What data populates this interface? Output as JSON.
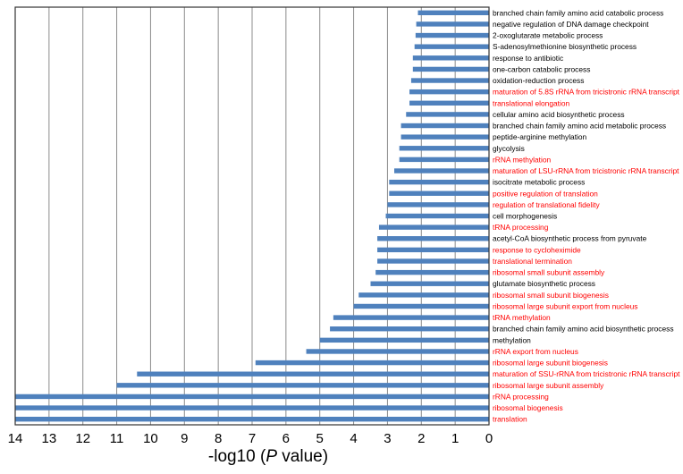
{
  "chart_data": {
    "type": "bar",
    "orientation": "horizontal",
    "x_axis_reversed": true,
    "xlabel_prefix": "-log10 (",
    "xlabel_italic": "P",
    "xlabel_suffix": " value)",
    "xlim": [
      0,
      14
    ],
    "xticks": [
      14,
      13,
      12,
      11,
      10,
      9,
      8,
      7,
      6,
      5,
      4,
      3,
      2,
      1,
      0
    ],
    "colors": {
      "bar": "#4f81bd",
      "highlight_label": "#ff0000",
      "normal_label": "#000000"
    },
    "categories": [
      {
        "label": "branched chain family amino acid catabolic process",
        "value": 2.1,
        "highlight": false
      },
      {
        "label": "negative regulation of DNA damage checkpoint",
        "value": 2.15,
        "highlight": false
      },
      {
        "label": "2-oxoglutarate metabolic process",
        "value": 2.17,
        "highlight": false
      },
      {
        "label": "S-adenosylmethionine biosynthetic process",
        "value": 2.2,
        "highlight": false
      },
      {
        "label": "response to antibiotic",
        "value": 2.25,
        "highlight": false
      },
      {
        "label": "one-carbon catabolic process",
        "value": 2.25,
        "highlight": false
      },
      {
        "label": "oxidation-reduction process",
        "value": 2.3,
        "highlight": false
      },
      {
        "label": "maturation of 5.8S rRNA from tricistronic rRNA transcript",
        "value": 2.35,
        "highlight": true
      },
      {
        "label": "translational elongation",
        "value": 2.35,
        "highlight": true
      },
      {
        "label": "cellular amino acid biosynthetic process",
        "value": 2.45,
        "highlight": false
      },
      {
        "label": "branched chain family amino acid metabolic process",
        "value": 2.6,
        "highlight": false
      },
      {
        "label": "peptide-arginine methylation",
        "value": 2.6,
        "highlight": false
      },
      {
        "label": "glycolysis",
        "value": 2.65,
        "highlight": false
      },
      {
        "label": "rRNA methylation",
        "value": 2.65,
        "highlight": true
      },
      {
        "label": "maturation of LSU-rRNA from tricistronic rRNA transcript",
        "value": 2.8,
        "highlight": true
      },
      {
        "label": "isocitrate metabolic process",
        "value": 2.95,
        "highlight": false
      },
      {
        "label": "positive regulation of translation",
        "value": 2.95,
        "highlight": true
      },
      {
        "label": "regulation of translational fidelity",
        "value": 3.0,
        "highlight": true
      },
      {
        "label": "cell morphogenesis",
        "value": 3.05,
        "highlight": false
      },
      {
        "label": "tRNA processing",
        "value": 3.25,
        "highlight": true
      },
      {
        "label": "acetyl-CoA biosynthetic process from pyruvate",
        "value": 3.3,
        "highlight": false
      },
      {
        "label": "response to cycloheximide",
        "value": 3.3,
        "highlight": true
      },
      {
        "label": "translational termination",
        "value": 3.3,
        "highlight": true
      },
      {
        "label": "ribosomal small subunit assembly",
        "value": 3.35,
        "highlight": true
      },
      {
        "label": "glutamate biosynthetic process",
        "value": 3.5,
        "highlight": false
      },
      {
        "label": "ribosomal small subunit biogenesis",
        "value": 3.85,
        "highlight": true
      },
      {
        "label": "ribosomal large subunit export from nucleus",
        "value": 4.0,
        "highlight": true
      },
      {
        "label": "tRNA methylation",
        "value": 4.6,
        "highlight": true
      },
      {
        "label": "branched chain family amino acid biosynthetic process",
        "value": 4.7,
        "highlight": false
      },
      {
        "label": "methylation",
        "value": 5.0,
        "highlight": false
      },
      {
        "label": "rRNA export from nucleus",
        "value": 5.4,
        "highlight": true
      },
      {
        "label": "ribosomal large subunit biogenesis",
        "value": 6.9,
        "highlight": true
      },
      {
        "label": "maturation of SSU-rRNA from tricistronic rRNA transcript",
        "value": 10.4,
        "highlight": true
      },
      {
        "label": "ribosomal large subunit assembly",
        "value": 11.0,
        "highlight": true
      },
      {
        "label": "rRNA processing",
        "value": 14.0,
        "highlight": true
      },
      {
        "label": "ribosomal biogenesis",
        "value": 14.0,
        "highlight": true
      },
      {
        "label": "translation",
        "value": 14.0,
        "highlight": true
      }
    ]
  }
}
